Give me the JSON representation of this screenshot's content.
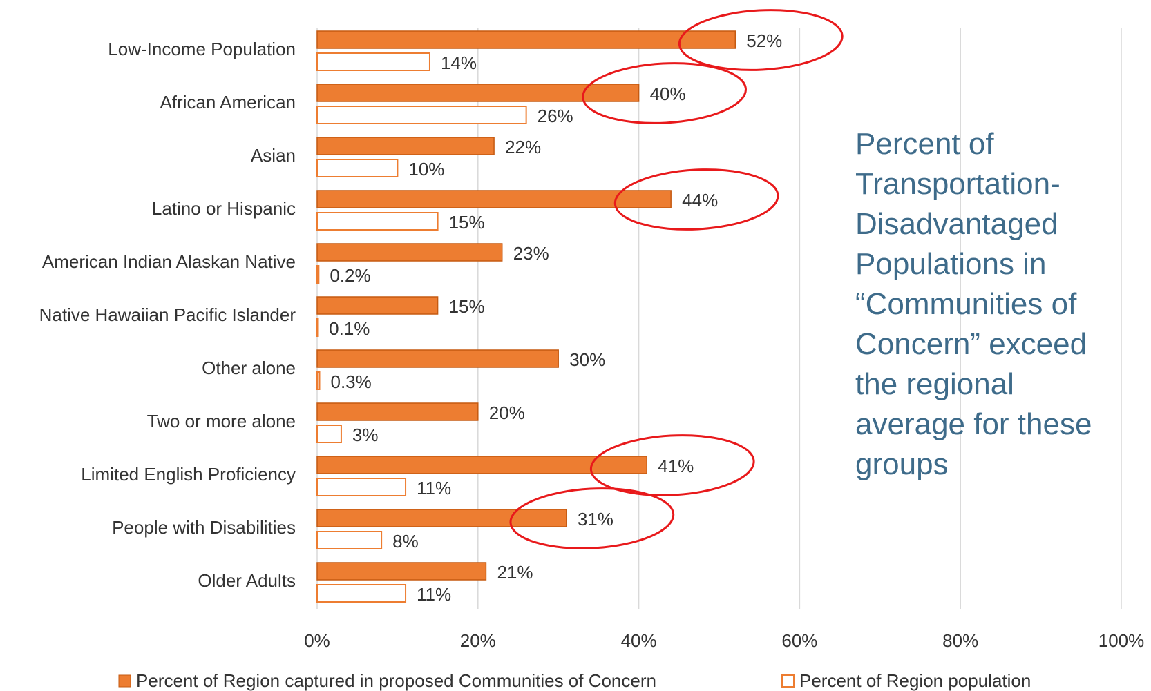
{
  "side_note": "Percent of Transportation-Disadvantaged Populations in “Communities of Concern” exceed the regional average for these groups",
  "colors": {
    "bar_fill": "#ED7D31",
    "bar_stroke": "#C55A11",
    "outline": "#ED7D31",
    "grid": "#D9D9D9",
    "highlight": "#E8191B",
    "note": "#3E6B8A"
  },
  "chart_data": {
    "type": "bar",
    "orientation": "horizontal",
    "categories": [
      "Low-Income Population",
      "African American",
      "Asian",
      "Latino or Hispanic",
      "American Indian Alaskan Native",
      "Native Hawaiian Pacific Islander",
      "Other alone",
      "Two or more alone",
      "Limited English Proficiency",
      "People with Disabilities",
      "Older Adults"
    ],
    "series": [
      {
        "name": "Percent of Region captured in proposed Communities of Concern",
        "values": [
          52,
          40,
          22,
          44,
          23,
          15,
          30,
          20,
          41,
          31,
          21
        ],
        "labels": [
          "52%",
          "40%",
          "22%",
          "44%",
          "23%",
          "15%",
          "30%",
          "20%",
          "41%",
          "31%",
          "21%"
        ],
        "style": "filled"
      },
      {
        "name": "Percent of Region population",
        "values": [
          14,
          26,
          10,
          15,
          0.2,
          0.1,
          0.3,
          3,
          11,
          8,
          11
        ],
        "labels": [
          "14%",
          "26%",
          "10%",
          "15%",
          "0.2%",
          "0.1%",
          "0.3%",
          "3%",
          "11%",
          "8%",
          "11%"
        ],
        "style": "outline"
      }
    ],
    "xlim": [
      0,
      100
    ],
    "x_ticks": [
      "0%",
      "20%",
      "40%",
      "60%",
      "80%",
      "100%"
    ],
    "grid": true,
    "legend": "bottom",
    "highlighted_categories": [
      "Low-Income Population",
      "African American",
      "Latino or Hispanic",
      "Limited English Proficiency",
      "People with Disabilities"
    ]
  }
}
